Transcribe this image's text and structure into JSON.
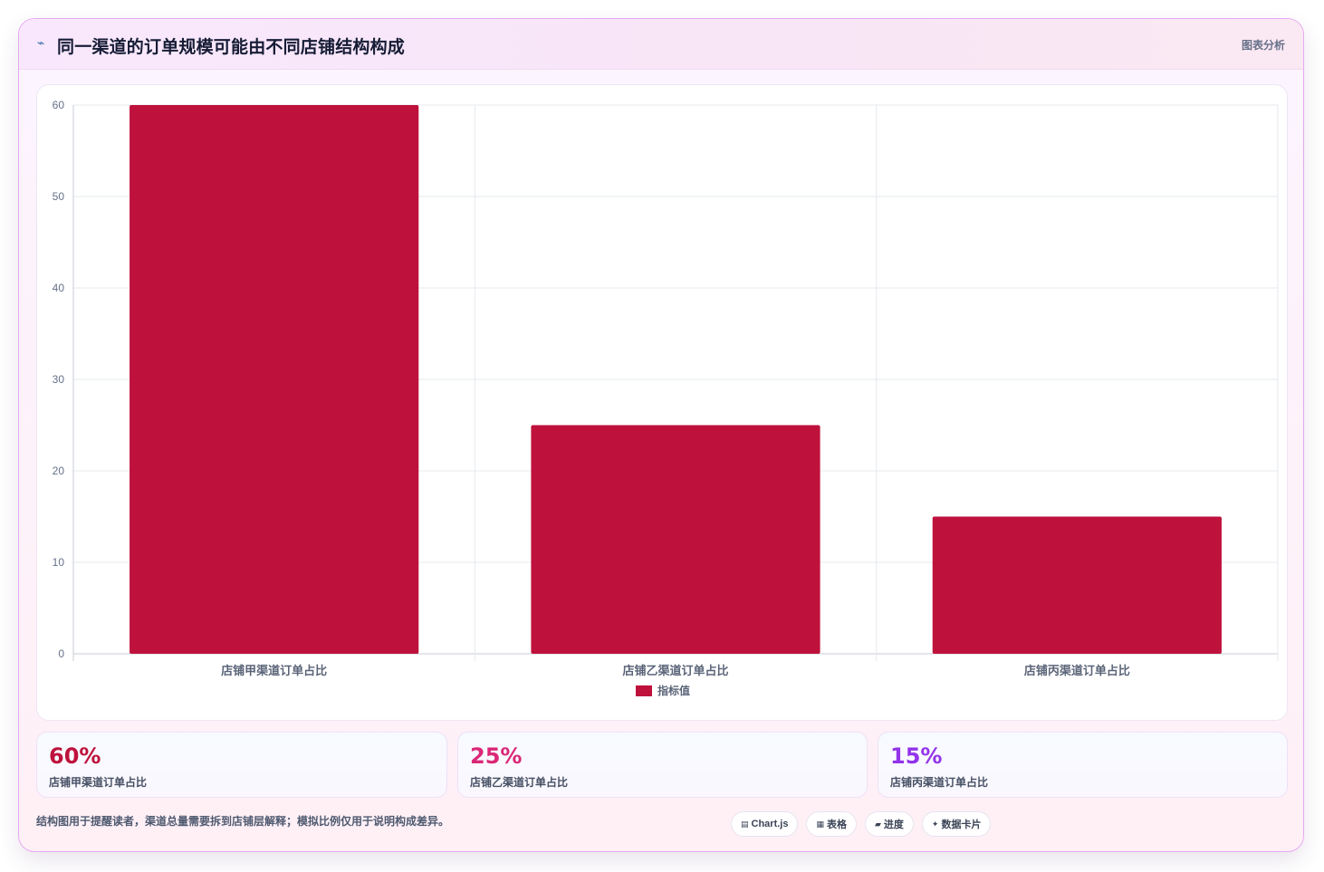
{
  "header": {
    "icon": "trend-icon",
    "title": "同一渠道的订单规模可能由不同店铺结构构成",
    "tag": "图表分析"
  },
  "chart_data": {
    "type": "bar",
    "categories": [
      "店铺甲渠道订单占比",
      "店铺乙渠道订单占比",
      "店铺丙渠道订单占比"
    ],
    "series": [
      {
        "name": "指标值",
        "values": [
          60,
          25,
          15
        ],
        "color": "#be123c"
      }
    ],
    "ylim": [
      0,
      60
    ],
    "yticks": [
      0,
      10,
      20,
      30,
      40,
      50,
      60
    ],
    "grid": true,
    "legend": "bottom",
    "title": "",
    "xlabel": "",
    "ylabel": ""
  },
  "stats": [
    {
      "value": "60%",
      "label": "店铺甲渠道订单占比",
      "color": "#be123c"
    },
    {
      "value": "25%",
      "label": "店铺乙渠道订单占比",
      "color": "#db2777"
    },
    {
      "value": "15%",
      "label": "店铺丙渠道订单占比",
      "color": "#9333ea"
    }
  ],
  "footnote": "结构图用于提醒读者，渠道总量需要拆到店铺层解释；模拟比例仅用于说明构成差异。",
  "chips": [
    {
      "icon": "▤",
      "label": "Chart.js"
    },
    {
      "icon": "▦",
      "label": "表格"
    },
    {
      "icon": "▰",
      "label": "进度"
    },
    {
      "icon": "✦",
      "label": "数据卡片"
    }
  ]
}
